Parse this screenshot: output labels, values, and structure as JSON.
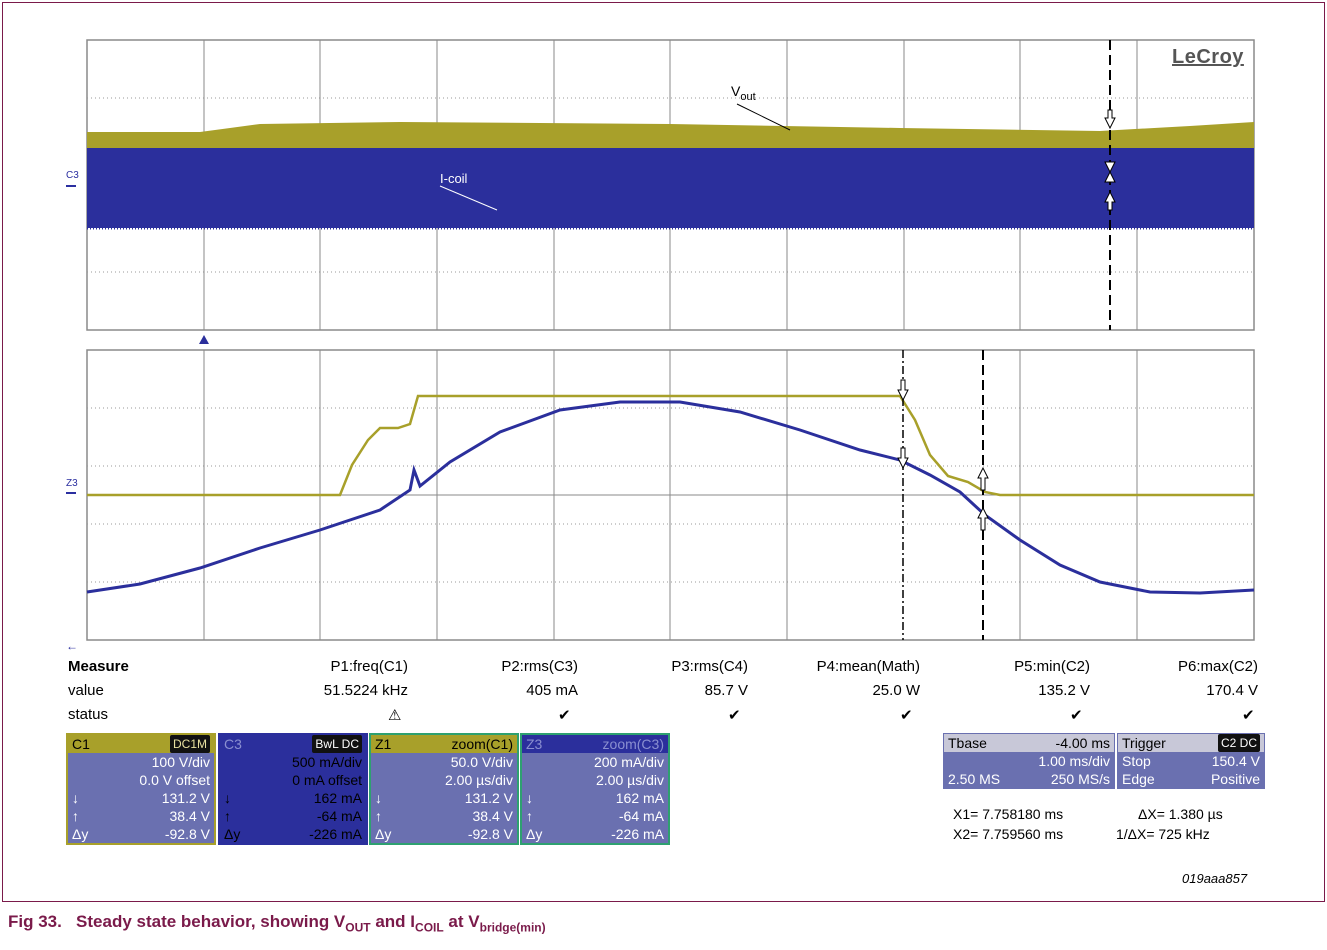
{
  "brand": "LeCroy",
  "image_id": "019aaa857",
  "caption": {
    "prefix": "Fig 33.",
    "text_parts": [
      "Steady state behavior, showing V",
      "OUT",
      " and I",
      "COIL",
      " at V",
      "bridge(min)"
    ]
  },
  "traces": {
    "upper_labels": {
      "vout_main": "V",
      "vout_sub": "out",
      "icoil": "I-coil"
    },
    "channel_markers": {
      "upper": "C3",
      "lower": "Z3"
    }
  },
  "colors": {
    "vout": "#a8a02a",
    "icoil": "#2b2f9c",
    "grid": "#9a9a9a",
    "frame": "#7a1a4a"
  },
  "measure": {
    "title": "Measure",
    "row_labels": [
      "value",
      "status"
    ],
    "params": [
      {
        "name": "P1:freq(C1)",
        "value": "51.5224 kHz",
        "status": "⚠"
      },
      {
        "name": "P2:rms(C3)",
        "value": "405 mA",
        "status": "✔"
      },
      {
        "name": "P3:rms(C4)",
        "value": "85.7 V",
        "status": "✔"
      },
      {
        "name": "P4:mean(Math)",
        "value": "25.0 W",
        "status": "✔"
      },
      {
        "name": "P5:min(C2)",
        "value": "135.2 V",
        "status": "✔"
      },
      {
        "name": "P6:max(C2)",
        "value": "170.4 V",
        "status": "✔"
      }
    ]
  },
  "channels": [
    {
      "id": "C1",
      "tag": "DC1M",
      "scale": "100 V/div",
      "offset": "0.0 V offset",
      "down": "131.2 V",
      "up": "38.4 V",
      "dy": "-92.8 V"
    },
    {
      "id": "C3",
      "tag": "BwL DC",
      "scale": "500 mA/div",
      "offset": "0 mA offset",
      "down": "162 mA",
      "up": "-64 mA",
      "dy": "-226 mA"
    },
    {
      "id": "Z1",
      "tag": "zoom(C1)",
      "scale": "50.0 V/div",
      "offset": "2.00 µs/div",
      "down": "131.2 V",
      "up": "38.4 V",
      "dy": "-92.8 V"
    },
    {
      "id": "Z3",
      "tag": "zoom(C3)",
      "scale": "200 mA/div",
      "offset": "2.00 µs/div",
      "down": "162 mA",
      "up": "-64 mA",
      "dy": "-226 mA"
    }
  ],
  "glyphs": {
    "down": "↓",
    "up": "↑",
    "dy": "Δy"
  },
  "timebase": {
    "label": "Tbase",
    "delay": "-4.00 ms",
    "per_div": "1.00 ms/div",
    "samples": "2.50 MS",
    "rate": "250 MS/s"
  },
  "trigger": {
    "label": "Trigger",
    "tag": "C2 DC",
    "mode": "Stop",
    "level": "150.4 V",
    "type": "Edge",
    "slope": "Positive"
  },
  "cursors": {
    "x1": "X1=  7.758180 ms",
    "x2": "X2=  7.759560 ms",
    "dx": "ΔX=  1.380 µs",
    "inv_dx": "1/ΔX=  725 kHz"
  }
}
